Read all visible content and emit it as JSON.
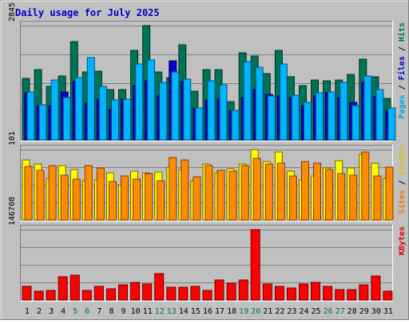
{
  "chart_data": {
    "type": "bar",
    "title": "Daily usage for July 2025",
    "days": [
      "1",
      "2",
      "3",
      "4",
      "5",
      "6",
      "7",
      "8",
      "9",
      "10",
      "11",
      "12",
      "13",
      "14",
      "15",
      "16",
      "17",
      "18",
      "19",
      "20",
      "21",
      "22",
      "23",
      "24",
      "25",
      "26",
      "27",
      "28",
      "29",
      "30",
      "31"
    ],
    "weekend_days": [
      "5",
      "6",
      "12",
      "13",
      "19",
      "20",
      "26",
      "27"
    ],
    "panels": [
      {
        "id": "hits",
        "max_label": "2845",
        "ymax": 2845,
        "legend": [
          {
            "text": "Pages",
            "color": "#00a6d8"
          },
          {
            "text": " / ",
            "color": "#000000"
          },
          {
            "text": "Files",
            "color": "#0000cc"
          },
          {
            "text": " / ",
            "color": "#000000"
          },
          {
            "text": "Hits",
            "color": "#007255"
          }
        ],
        "series": [
          {
            "name": "Hits",
            "color": "#007255",
            "edge": "#003322",
            "values": [
              1540,
              1760,
              1340,
              1600,
              2450,
              1700,
              1720,
              1260,
              1260,
              2220,
              2845,
              1700,
              1560,
              2370,
              1220,
              1750,
              1760,
              950,
              2170,
              2080,
              1660,
              2230,
              1570,
              1360,
              1490,
              1480,
              1490,
              1630,
              2010,
              1580,
              1030
            ]
          },
          {
            "name": "Files",
            "color": "#0000cc",
            "edge": "#000055",
            "values": [
              1170,
              860,
              860,
              1200,
              1460,
              920,
              1020,
              760,
              1010,
              1350,
              1470,
              1090,
              1970,
              1460,
              800,
              1000,
              1010,
              740,
              1060,
              1250,
              1130,
              1100,
              1060,
              850,
              1100,
              1170,
              1050,
              930,
              1440,
              1080,
              740
            ]
          },
          {
            "name": "Pages",
            "color": "#00b4ff",
            "edge": "#005080",
            "values": [
              1190,
              870,
              1490,
              1050,
              1550,
              2040,
              1330,
              1000,
              1010,
              1890,
              1990,
              1430,
              1700,
              1510,
              800,
              1480,
              1370,
              740,
              1940,
              1820,
              1100,
              1890,
              1120,
              930,
              1180,
              1190,
              1440,
              860,
              1590,
              1260,
              790
            ]
          }
        ]
      },
      {
        "id": "visits",
        "max_label": "101",
        "ymax": 101,
        "legend": [
          {
            "text": "Sites",
            "color": "#f07800"
          },
          {
            "text": " / ",
            "color": "#000000"
          },
          {
            "text": "Visits",
            "color": "#d8c800"
          }
        ],
        "series": [
          {
            "name": "Visits",
            "color": "#ffff00",
            "edge": "#806000",
            "values": [
              86,
              80,
              60,
              78,
              72,
              56,
              57,
              68,
              51,
              70,
              68,
              69,
              76,
              72,
              56,
              80,
              68,
              74,
              80,
              101,
              84,
              98,
              70,
              57,
              63,
              75,
              85,
              75,
              94,
              82,
              60
            ]
          },
          {
            "name": "Sites",
            "color": "#ff8c00",
            "edge": "#803c00",
            "values": [
              77,
              71,
              78,
              64,
              59,
              78,
              75,
              55,
              63,
              58,
              67,
              56,
              90,
              86,
              62,
              78,
              71,
              70,
              78,
              88,
              80,
              81,
              63,
              84,
              82,
              72,
              67,
              64,
              98,
              63,
              76
            ]
          }
        ]
      },
      {
        "id": "kbytes",
        "max_label": "146708",
        "ymax": 146708,
        "legend": [
          {
            "text": "KBytes",
            "color": "#e00000"
          }
        ],
        "series": [
          {
            "name": "KBytes",
            "color": "#ff0000",
            "edge": "#700000",
            "values": [
              28000,
              19000,
              20000,
              49000,
              51000,
              20000,
              28000,
              24000,
              31000,
              37000,
              33000,
              55000,
              26000,
              27000,
              28000,
              20000,
              42000,
              35000,
              41000,
              146708,
              34000,
              28000,
              25000,
              33000,
              37000,
              29000,
              22000,
              22000,
              31000,
              50000,
              18000
            ]
          }
        ]
      }
    ]
  }
}
